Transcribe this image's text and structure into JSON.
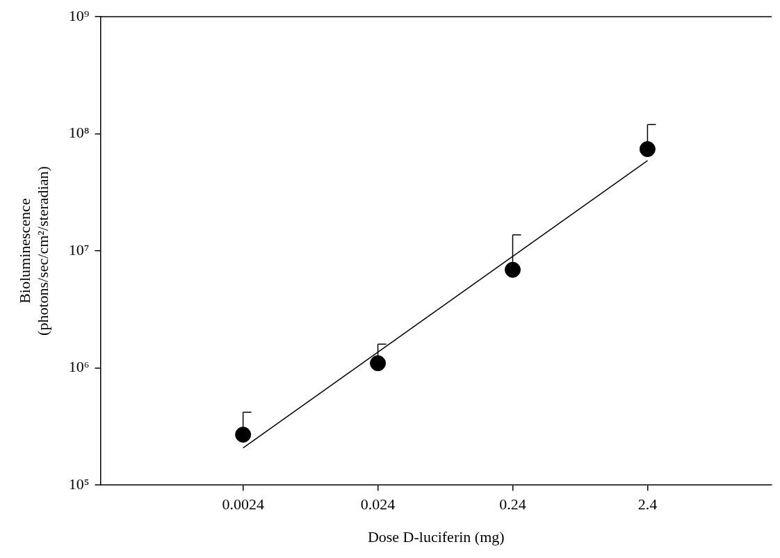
{
  "chart_data": {
    "type": "scatter",
    "x_label": "Dose D-luciferin (mg)",
    "y_label": [
      "Bioluminescence",
      "(photons/sec/cm²/steradian)"
    ],
    "x": [
      0.0024,
      0.024,
      0.24,
      2.4
    ],
    "values": [
      270000,
      1100000,
      6900000,
      74000000
    ],
    "error_plus": [
      150000,
      500000,
      6800000,
      46000000
    ],
    "fit_x": [
      0.0024,
      2.4
    ],
    "fit_values": [
      208000,
      59000000
    ],
    "color": "#000000",
    "marker": "circle",
    "log": true,
    "grid": false,
    "xlim": [
      0.00021,
      20
    ],
    "xticks": [
      0.0024,
      0.024,
      0.24,
      2.4
    ],
    "ylim": [
      100000,
      1000000000
    ],
    "yticks": [
      {
        "value": 100000,
        "label": "10⁵"
      },
      {
        "value": 1000000,
        "label": "10⁶"
      },
      {
        "value": 10000000,
        "label": "10⁷"
      },
      {
        "value": 100000000,
        "label": "10⁸"
      },
      {
        "value": 1000000000,
        "label": "10⁹"
      }
    ]
  }
}
